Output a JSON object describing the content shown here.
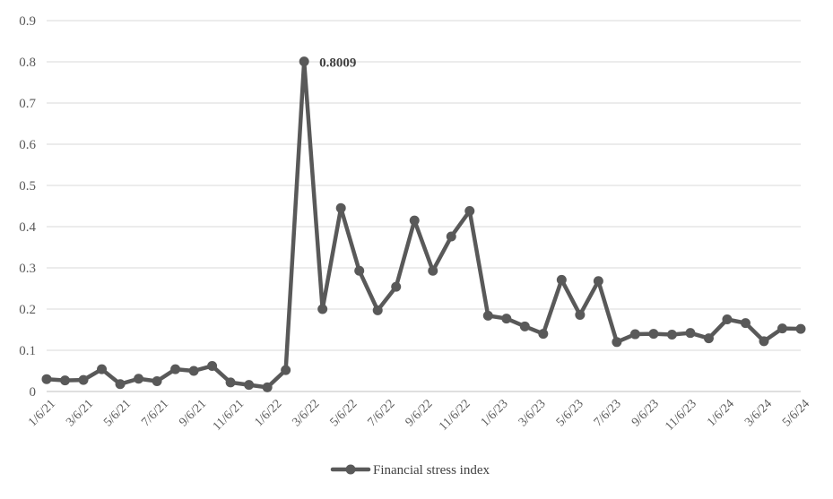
{
  "chart_data": {
    "type": "line",
    "ylim": [
      0,
      0.9
    ],
    "y_ticks": [
      "0",
      "0.1",
      "0.2",
      "0.3",
      "0.4",
      "0.5",
      "0.6",
      "0.7",
      "0.8",
      "0.9"
    ],
    "x_tick_labels": [
      "1/6/21",
      "3/6/21",
      "5/6/21",
      "7/6/21",
      "9/6/21",
      "11/6/21",
      "1/6/22",
      "3/6/22",
      "5/6/22",
      "7/6/22",
      "9/6/22",
      "11/6/22",
      "1/6/23",
      "3/6/23",
      "5/6/23",
      "7/6/23",
      "9/6/23",
      "11/6/23",
      "1/6/24",
      "3/6/24",
      "5/6/24"
    ],
    "grid": true,
    "legend_position": "bottom",
    "series": [
      {
        "name": "Financial stress index",
        "color": "#595959",
        "values": [
          0.03,
          0.027,
          0.028,
          0.054,
          0.018,
          0.031,
          0.025,
          0.054,
          0.05,
          0.062,
          0.022,
          0.016,
          0.01,
          0.052,
          0.8009,
          0.2,
          0.445,
          0.293,
          0.197,
          0.254,
          0.415,
          0.293,
          0.376,
          0.438,
          0.184,
          0.177,
          0.158,
          0.14,
          0.271,
          0.186,
          0.268,
          0.12,
          0.139,
          0.14,
          0.138,
          0.142,
          0.129,
          0.175,
          0.166,
          0.122,
          0.153,
          0.152
        ]
      }
    ],
    "annotations": [
      {
        "index": 14,
        "text": "0.8009"
      }
    ]
  }
}
